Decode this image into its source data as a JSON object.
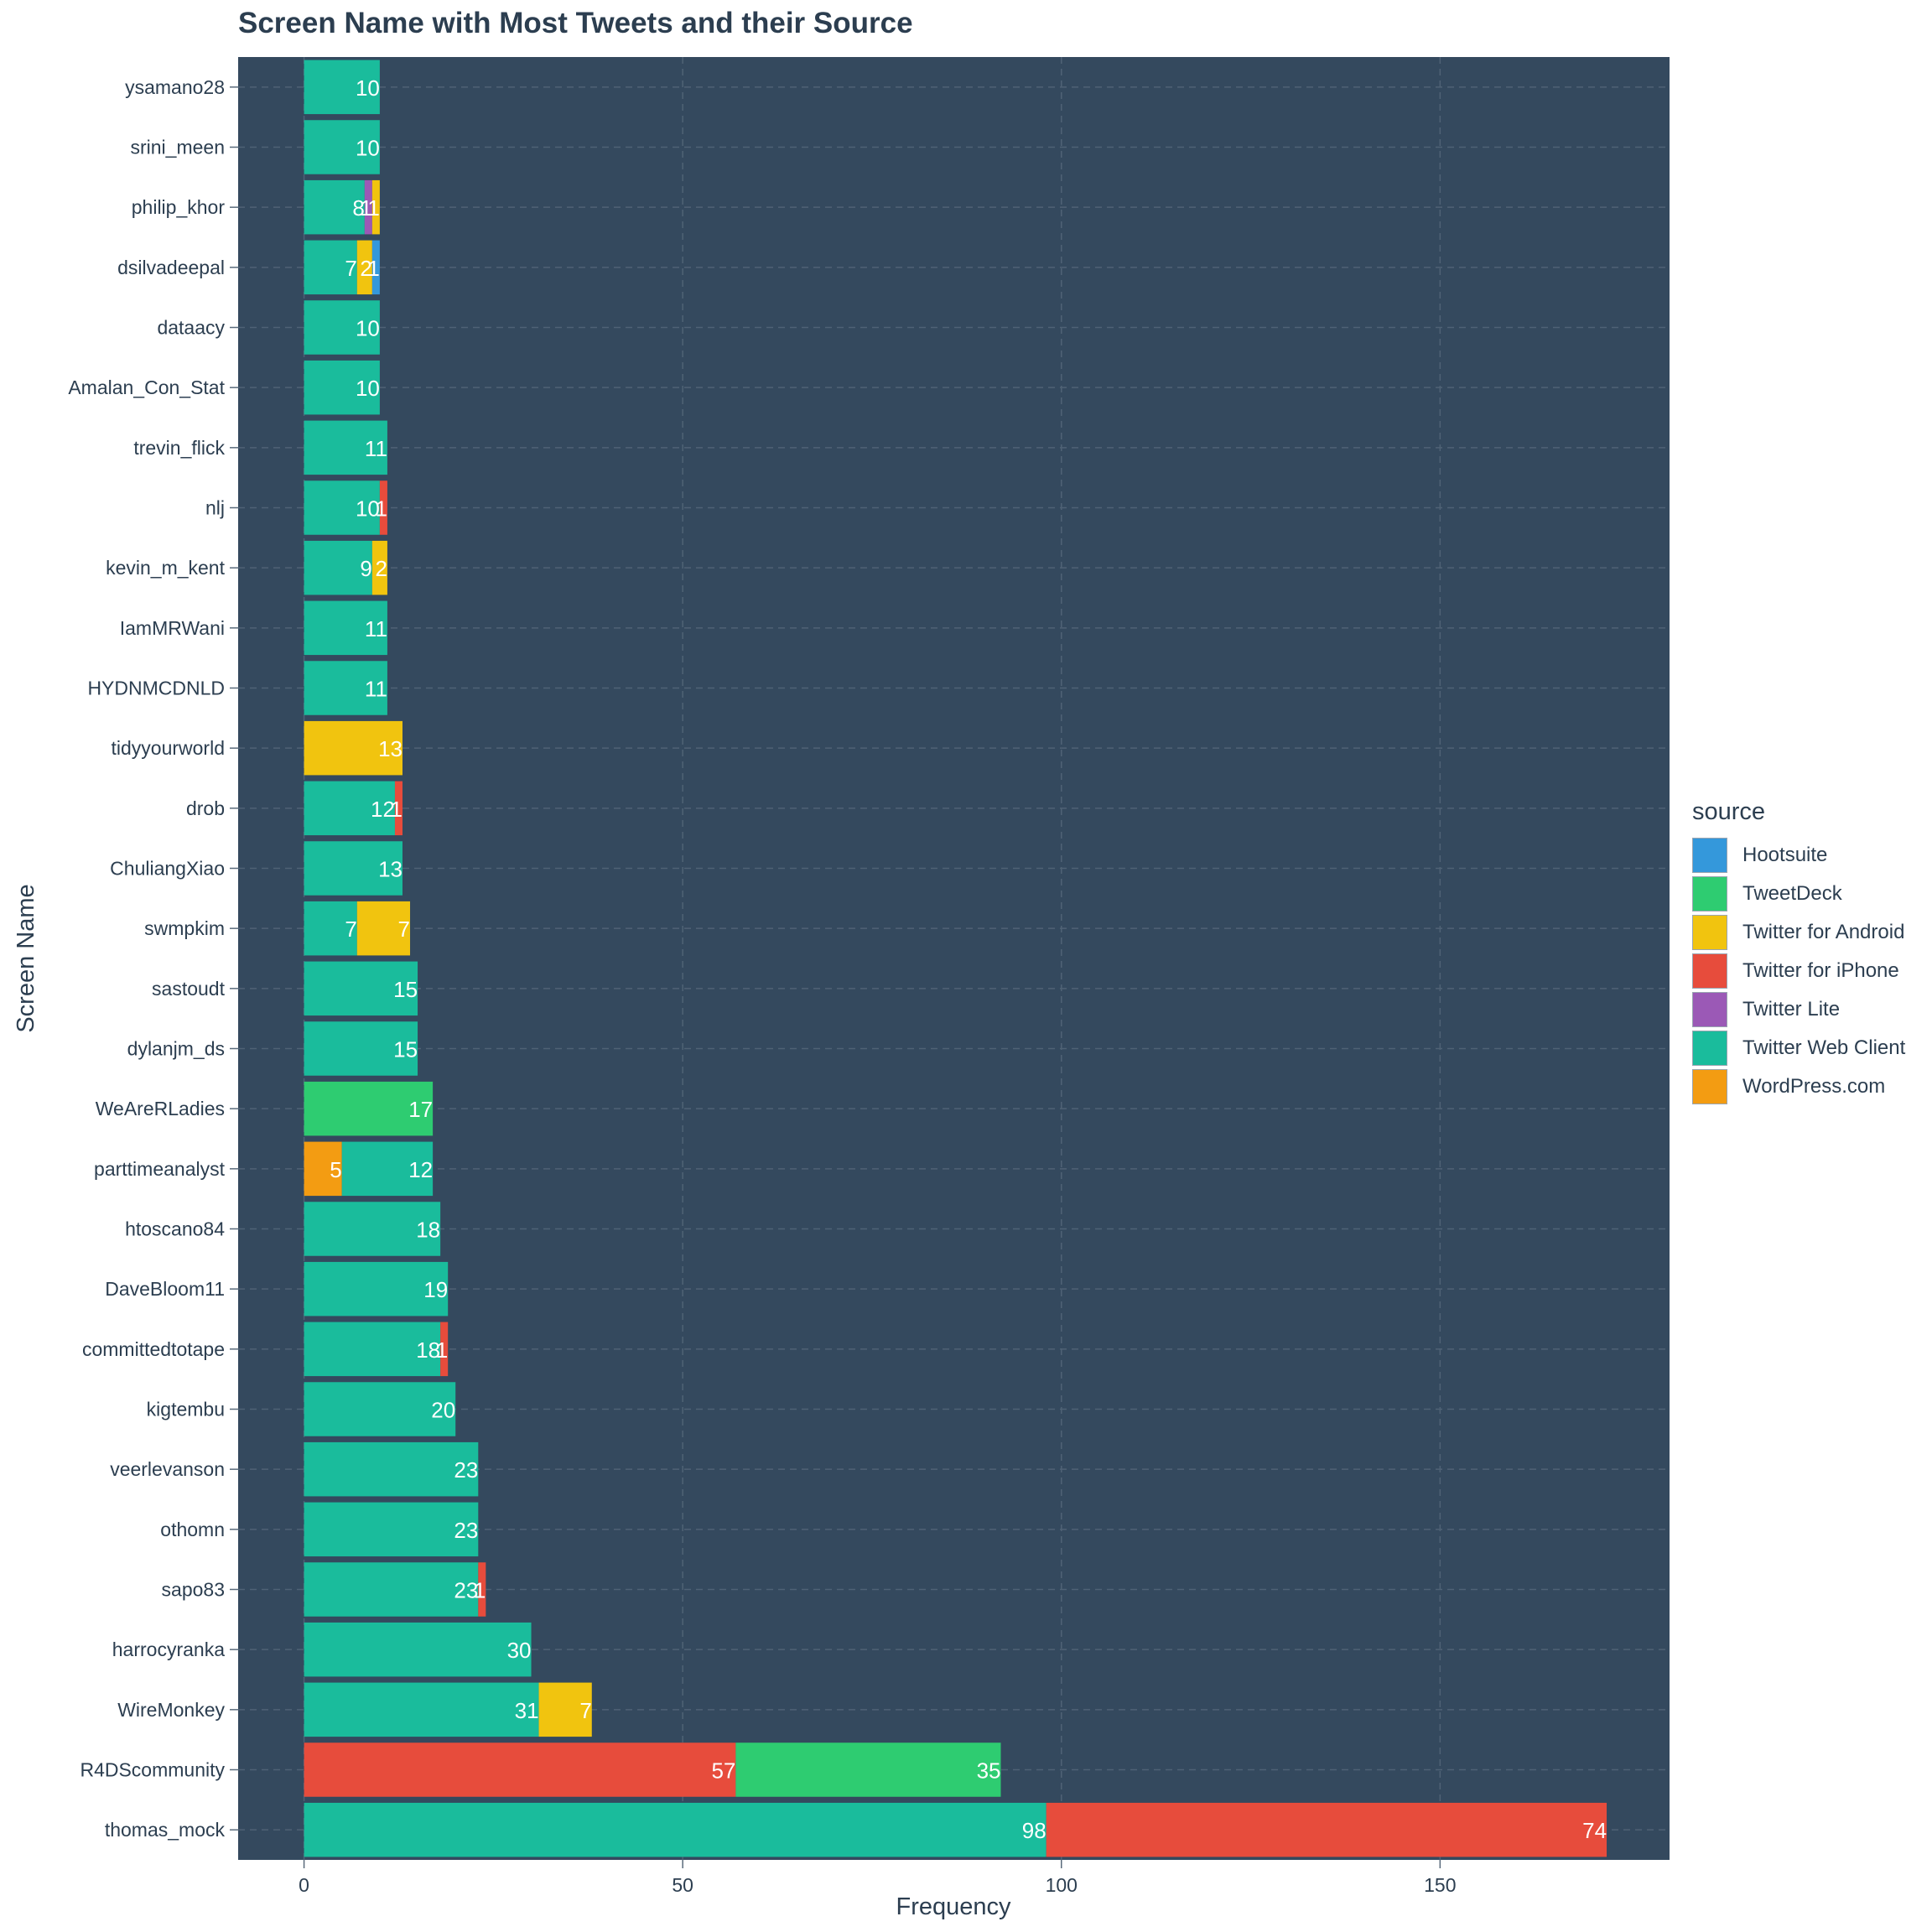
{
  "chart_data": {
    "type": "bar",
    "orientation": "horizontal",
    "stacked": true,
    "title": "Screen Name with Most Tweets and their Source",
    "xlabel": "Frequency",
    "ylabel": "Screen Name",
    "xlim": [
      -8.7,
      180.3
    ],
    "xticks": [
      0,
      50,
      100,
      150
    ],
    "grid": true,
    "legend_title": "source",
    "legend_position": "right",
    "categories": [
      "ysamano28",
      "srini_meen",
      "philip_khor",
      "dsilvadeepal",
      "dataacy",
      "Amalan_Con_Stat",
      "trevin_flick",
      "nlj",
      "kevin_m_kent",
      "IamMRWani",
      "HYDNMCDNLD",
      "tidyyourworld",
      "drob",
      "ChuliangXiao",
      "swmpkim",
      "sastoudt",
      "dylanjm_ds",
      "WeAreRLadies",
      "parttimeanalyst",
      "htoscano84",
      "DaveBloom11",
      "committedtotape",
      "kigtembu",
      "veerlevanson",
      "othomn",
      "sapo83",
      "harrocyranka",
      "WireMonkey",
      "R4DScommunity",
      "thomas_mock"
    ],
    "series": [
      {
        "name": "Hootsuite",
        "color": "#3498db"
      },
      {
        "name": "TweetDeck",
        "color": "#2ecc71"
      },
      {
        "name": "Twitter for Android",
        "color": "#f1c40f"
      },
      {
        "name": "Twitter for iPhone",
        "color": "#e74c3c"
      },
      {
        "name": "Twitter Lite",
        "color": "#9b59b6"
      },
      {
        "name": "Twitter Web Client",
        "color": "#1abc9c"
      },
      {
        "name": "WordPress.com",
        "color": "#f39c12"
      }
    ],
    "bars": [
      {
        "segments": [
          {
            "source": "Twitter Web Client",
            "value": 10
          }
        ]
      },
      {
        "segments": [
          {
            "source": "Twitter Web Client",
            "value": 10
          }
        ]
      },
      {
        "segments": [
          {
            "source": "Twitter Web Client",
            "value": 8
          },
          {
            "source": "Twitter Lite",
            "value": 1
          },
          {
            "source": "Twitter for Android",
            "value": 1
          }
        ]
      },
      {
        "segments": [
          {
            "source": "Twitter Web Client",
            "value": 7
          },
          {
            "source": "Twitter for Android",
            "value": 2
          },
          {
            "source": "Hootsuite",
            "value": 1
          }
        ]
      },
      {
        "segments": [
          {
            "source": "Twitter Web Client",
            "value": 10
          }
        ]
      },
      {
        "segments": [
          {
            "source": "Twitter Web Client",
            "value": 10
          }
        ]
      },
      {
        "segments": [
          {
            "source": "Twitter Web Client",
            "value": 11
          }
        ]
      },
      {
        "segments": [
          {
            "source": "Twitter Web Client",
            "value": 10
          },
          {
            "source": "Twitter for iPhone",
            "value": 1
          }
        ]
      },
      {
        "segments": [
          {
            "source": "Twitter Web Client",
            "value": 9
          },
          {
            "source": "Twitter for Android",
            "value": 2
          }
        ]
      },
      {
        "segments": [
          {
            "source": "Twitter Web Client",
            "value": 11
          }
        ]
      },
      {
        "segments": [
          {
            "source": "Twitter Web Client",
            "value": 11
          }
        ]
      },
      {
        "segments": [
          {
            "source": "Twitter for Android",
            "value": 13
          }
        ]
      },
      {
        "segments": [
          {
            "source": "Twitter Web Client",
            "value": 12
          },
          {
            "source": "Twitter for iPhone",
            "value": 1
          }
        ]
      },
      {
        "segments": [
          {
            "source": "Twitter Web Client",
            "value": 13
          }
        ]
      },
      {
        "segments": [
          {
            "source": "Twitter Web Client",
            "value": 7
          },
          {
            "source": "Twitter for Android",
            "value": 7
          }
        ]
      },
      {
        "segments": [
          {
            "source": "Twitter Web Client",
            "value": 15
          }
        ]
      },
      {
        "segments": [
          {
            "source": "Twitter Web Client",
            "value": 15
          }
        ]
      },
      {
        "segments": [
          {
            "source": "TweetDeck",
            "value": 17
          }
        ]
      },
      {
        "segments": [
          {
            "source": "WordPress.com",
            "value": 5
          },
          {
            "source": "Twitter Web Client",
            "value": 12
          }
        ]
      },
      {
        "segments": [
          {
            "source": "Twitter Web Client",
            "value": 18
          }
        ]
      },
      {
        "segments": [
          {
            "source": "Twitter Web Client",
            "value": 19
          }
        ]
      },
      {
        "segments": [
          {
            "source": "Twitter Web Client",
            "value": 18
          },
          {
            "source": "Twitter for iPhone",
            "value": 1
          }
        ]
      },
      {
        "segments": [
          {
            "source": "Twitter Web Client",
            "value": 20
          }
        ]
      },
      {
        "segments": [
          {
            "source": "Twitter Web Client",
            "value": 23
          }
        ]
      },
      {
        "segments": [
          {
            "source": "Twitter Web Client",
            "value": 23
          }
        ]
      },
      {
        "segments": [
          {
            "source": "Twitter Web Client",
            "value": 23
          },
          {
            "source": "Twitter for iPhone",
            "value": 1
          }
        ]
      },
      {
        "segments": [
          {
            "source": "Twitter Web Client",
            "value": 30
          }
        ]
      },
      {
        "segments": [
          {
            "source": "Twitter Web Client",
            "value": 31
          },
          {
            "source": "Twitter for Android",
            "value": 7
          }
        ]
      },
      {
        "segments": [
          {
            "source": "Twitter for iPhone",
            "value": 57
          },
          {
            "source": "TweetDeck",
            "value": 35
          }
        ]
      },
      {
        "segments": [
          {
            "source": "Twitter Web Client",
            "value": 98
          },
          {
            "source": "Twitter for iPhone",
            "value": 74
          }
        ]
      }
    ],
    "colors": {
      "panel_background": "#34495e",
      "grid_line": "#4f6275",
      "text": "#2c3e50",
      "label_text": "#ffffff"
    }
  }
}
